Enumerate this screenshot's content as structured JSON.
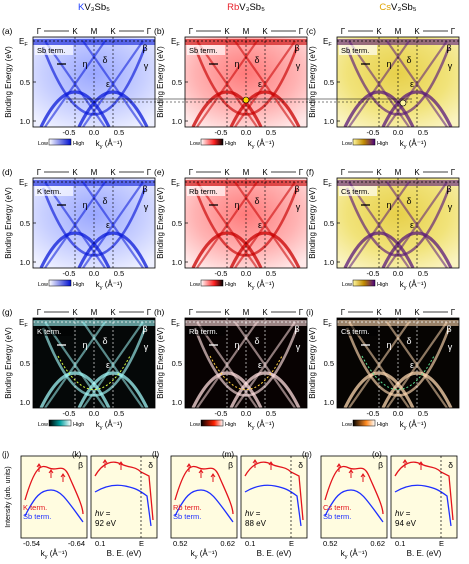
{
  "columns": [
    {
      "title_prefix": "K",
      "title_suffix": "V₃Sb₅",
      "accent": "#1f3fff"
    },
    {
      "title_prefix": "Rb",
      "title_suffix": "V₃Sb₅",
      "accent": "#e8202a"
    },
    {
      "title_prefix": "Cs",
      "title_suffix": "V₃Sb₅",
      "accent": "#e0a400"
    }
  ],
  "row_panels": [
    {
      "labels": [
        "(a)",
        "(b)",
        "(c)"
      ],
      "terms": [
        "Sb term.",
        "Sb term.",
        "Sb term."
      ]
    },
    {
      "labels": [
        "(d)",
        "(e)",
        "(f)"
      ],
      "terms": [
        "K term.",
        "Rb term.",
        "Cs term."
      ]
    },
    {
      "labels": [
        "(g)",
        "(h)",
        "(i)"
      ],
      "terms": [
        "K term.",
        "Rb term.",
        "Cs term."
      ]
    }
  ],
  "hs_points": [
    "Γ",
    "K",
    "M",
    "K",
    "Γ"
  ],
  "ef_label": "E",
  "ef_sub": "F",
  "band_labels": {
    "eta": "η",
    "delta": "δ",
    "beta": "β",
    "gamma": "γ",
    "epsilon": "ε"
  },
  "y_axis_label": "Binding Energy (eV)",
  "y_ticks": [
    "0",
    "0.5",
    "1.0"
  ],
  "x_ticks": [
    "-0.5",
    "0.0",
    "0.5"
  ],
  "x_axis_prefix": "k",
  "x_axis_sub": "y",
  "x_axis_unit": "(Å⁻¹)",
  "colorbar": {
    "low": "Low",
    "high": "High"
  },
  "bottom_panels": [
    {
      "label": "(j)",
      "band": "β",
      "legend": [
        "K term.",
        "Sb term."
      ],
      "ticks": [
        "-0.54",
        "-0.64"
      ],
      "xlabel_prefix": "k",
      "xlabel_sub": "y",
      "xlabel_unit": "(Å⁻¹)"
    },
    {
      "label": "(k)",
      "band": "δ",
      "hv": "hv =",
      "hv_value": "92 eV",
      "ticks": [
        "0.1",
        "E"
      ],
      "xlabel": "B. E. (eV)"
    },
    {
      "label": "(l)",
      "band": "β",
      "legend": [
        "Rb term.",
        "Sb term."
      ],
      "ticks": [
        "0.52",
        "0.62"
      ],
      "xlabel_prefix": "k",
      "xlabel_sub": "y",
      "xlabel_unit": "(Å⁻¹)"
    },
    {
      "label": "(m)",
      "band": "δ",
      "hv": "hv =",
      "hv_value": "88 eV",
      "ticks": [
        "0.1",
        "E"
      ],
      "xlabel": "B. E. (eV)"
    },
    {
      "label": "(n)",
      "band": "β",
      "legend": [
        "Cs term.",
        "Sb term."
      ],
      "ticks": [
        "0.52",
        "0.62"
      ],
      "xlabel_prefix": "k",
      "xlabel_sub": "y",
      "xlabel_unit": "(Å⁻¹)"
    },
    {
      "label": "(o)",
      "band": "δ",
      "hv": "hv =",
      "hv_value": "94 eV",
      "ticks": [
        "0.1",
        "E"
      ],
      "xlabel": "B. E. (eV)"
    }
  ],
  "bottom_y_label": "Intensity (arb. units)",
  "colors": {
    "blue": "#1e2fff",
    "red": "#e3141c",
    "gold": "#d8a800",
    "purple": "#4a1a6a",
    "cyan": "#22e0e0",
    "orange": "#ff8a20"
  }
}
